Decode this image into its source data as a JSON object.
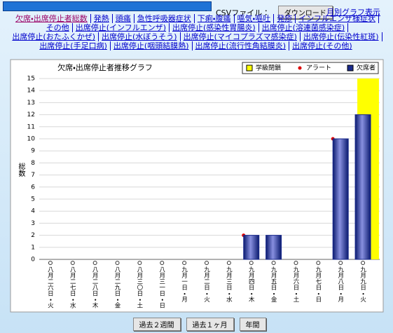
{
  "header": {
    "csv_label": "CSVファイル：",
    "download_button": "ダウンロード",
    "monthly_link": "月別グラフ表示"
  },
  "links": [
    "欠席・出席停止者総数",
    "発熱",
    "頭痛",
    "急性呼吸器症状",
    "下痢・腹痛",
    "嘔気・嘔吐",
    "発疹",
    "インフルエンザ様症状",
    "その他",
    "出席停止(インフルエンザ)",
    "出席停止(感染性胃腸炎)",
    "出席停止(溶連菌感染症)",
    "出席停止(おたふくかぜ)",
    "出席停止(水ぼうそう)",
    "出席停止(マイコプラズマ感染症)",
    "出席停止(伝染性紅斑)",
    "出席停止(手足口病)",
    "出席停止(咽頭結膜熱)",
    "出席停止(流行性角結膜炎)",
    "出席停止(その他)"
  ],
  "chart_data": {
    "type": "bar",
    "title": "欠席・出席停止者推移グラフ",
    "y_label": "総数",
    "categories": [
      "八月二六日・火",
      "八月二七日・水",
      "八月二八日・木",
      "八月二九日・金",
      "八月三〇日・土",
      "八月三一日・日",
      "九月一日・月",
      "九月二日・火",
      "九月三日・水",
      "九月四日・木",
      "九月五日・金",
      "九月六日・土",
      "九月七日・日",
      "九月八日・月",
      "九月九日・火"
    ],
    "series": [
      {
        "name": "学級閉鎖",
        "color": "#ffff00",
        "values": [
          null,
          null,
          null,
          null,
          null,
          null,
          null,
          null,
          null,
          null,
          null,
          null,
          null,
          null,
          15
        ]
      },
      {
        "name": "アラート",
        "color": "#dd0000",
        "values": [
          null,
          null,
          null,
          null,
          null,
          null,
          null,
          null,
          null,
          2,
          null,
          null,
          null,
          10,
          null
        ]
      },
      {
        "name": "欠席者",
        "color": "#1a2a8c",
        "values": [
          0,
          0,
          0,
          0,
          0,
          0,
          0,
          0,
          0,
          2,
          2,
          0,
          0,
          10,
          12
        ]
      }
    ],
    "ylim": [
      0,
      15
    ],
    "yticks": [
      0,
      1,
      2,
      3,
      4,
      5,
      6,
      7,
      8,
      9,
      10,
      11,
      12,
      13,
      14,
      15
    ],
    "grid": true
  },
  "buttons": [
    "過去２週間",
    "過去１ヶ月",
    "年間"
  ]
}
